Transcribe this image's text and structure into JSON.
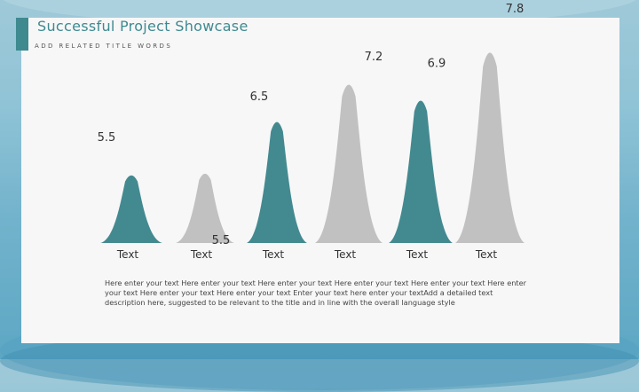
{
  "header": {
    "title": "Successful Project Showcase",
    "subtitle": "ADD RELATED TITLE WORDS"
  },
  "description": "Here enter your text Here enter your text Here enter your text Here enter your text Here enter your text Here enter your text Here enter your text Here enter your text Enter your text here enter your textAdd a detailed text description here, suggested to be relevant to the title and in line with the overall language style",
  "colors": {
    "teal": "#438a90",
    "grey": "#c1c1c1"
  },
  "chart_data": {
    "type": "bar",
    "categories": [
      "Text",
      "Text",
      "Text",
      "Text",
      "Text",
      "Text"
    ],
    "values": [
      5.5,
      5.5,
      6.5,
      7.2,
      6.9,
      7.8
    ],
    "bar_colors": [
      "teal",
      "grey",
      "teal",
      "grey",
      "teal",
      "grey"
    ],
    "title": "",
    "xlabel": "",
    "ylabel": "",
    "grid": false
  }
}
